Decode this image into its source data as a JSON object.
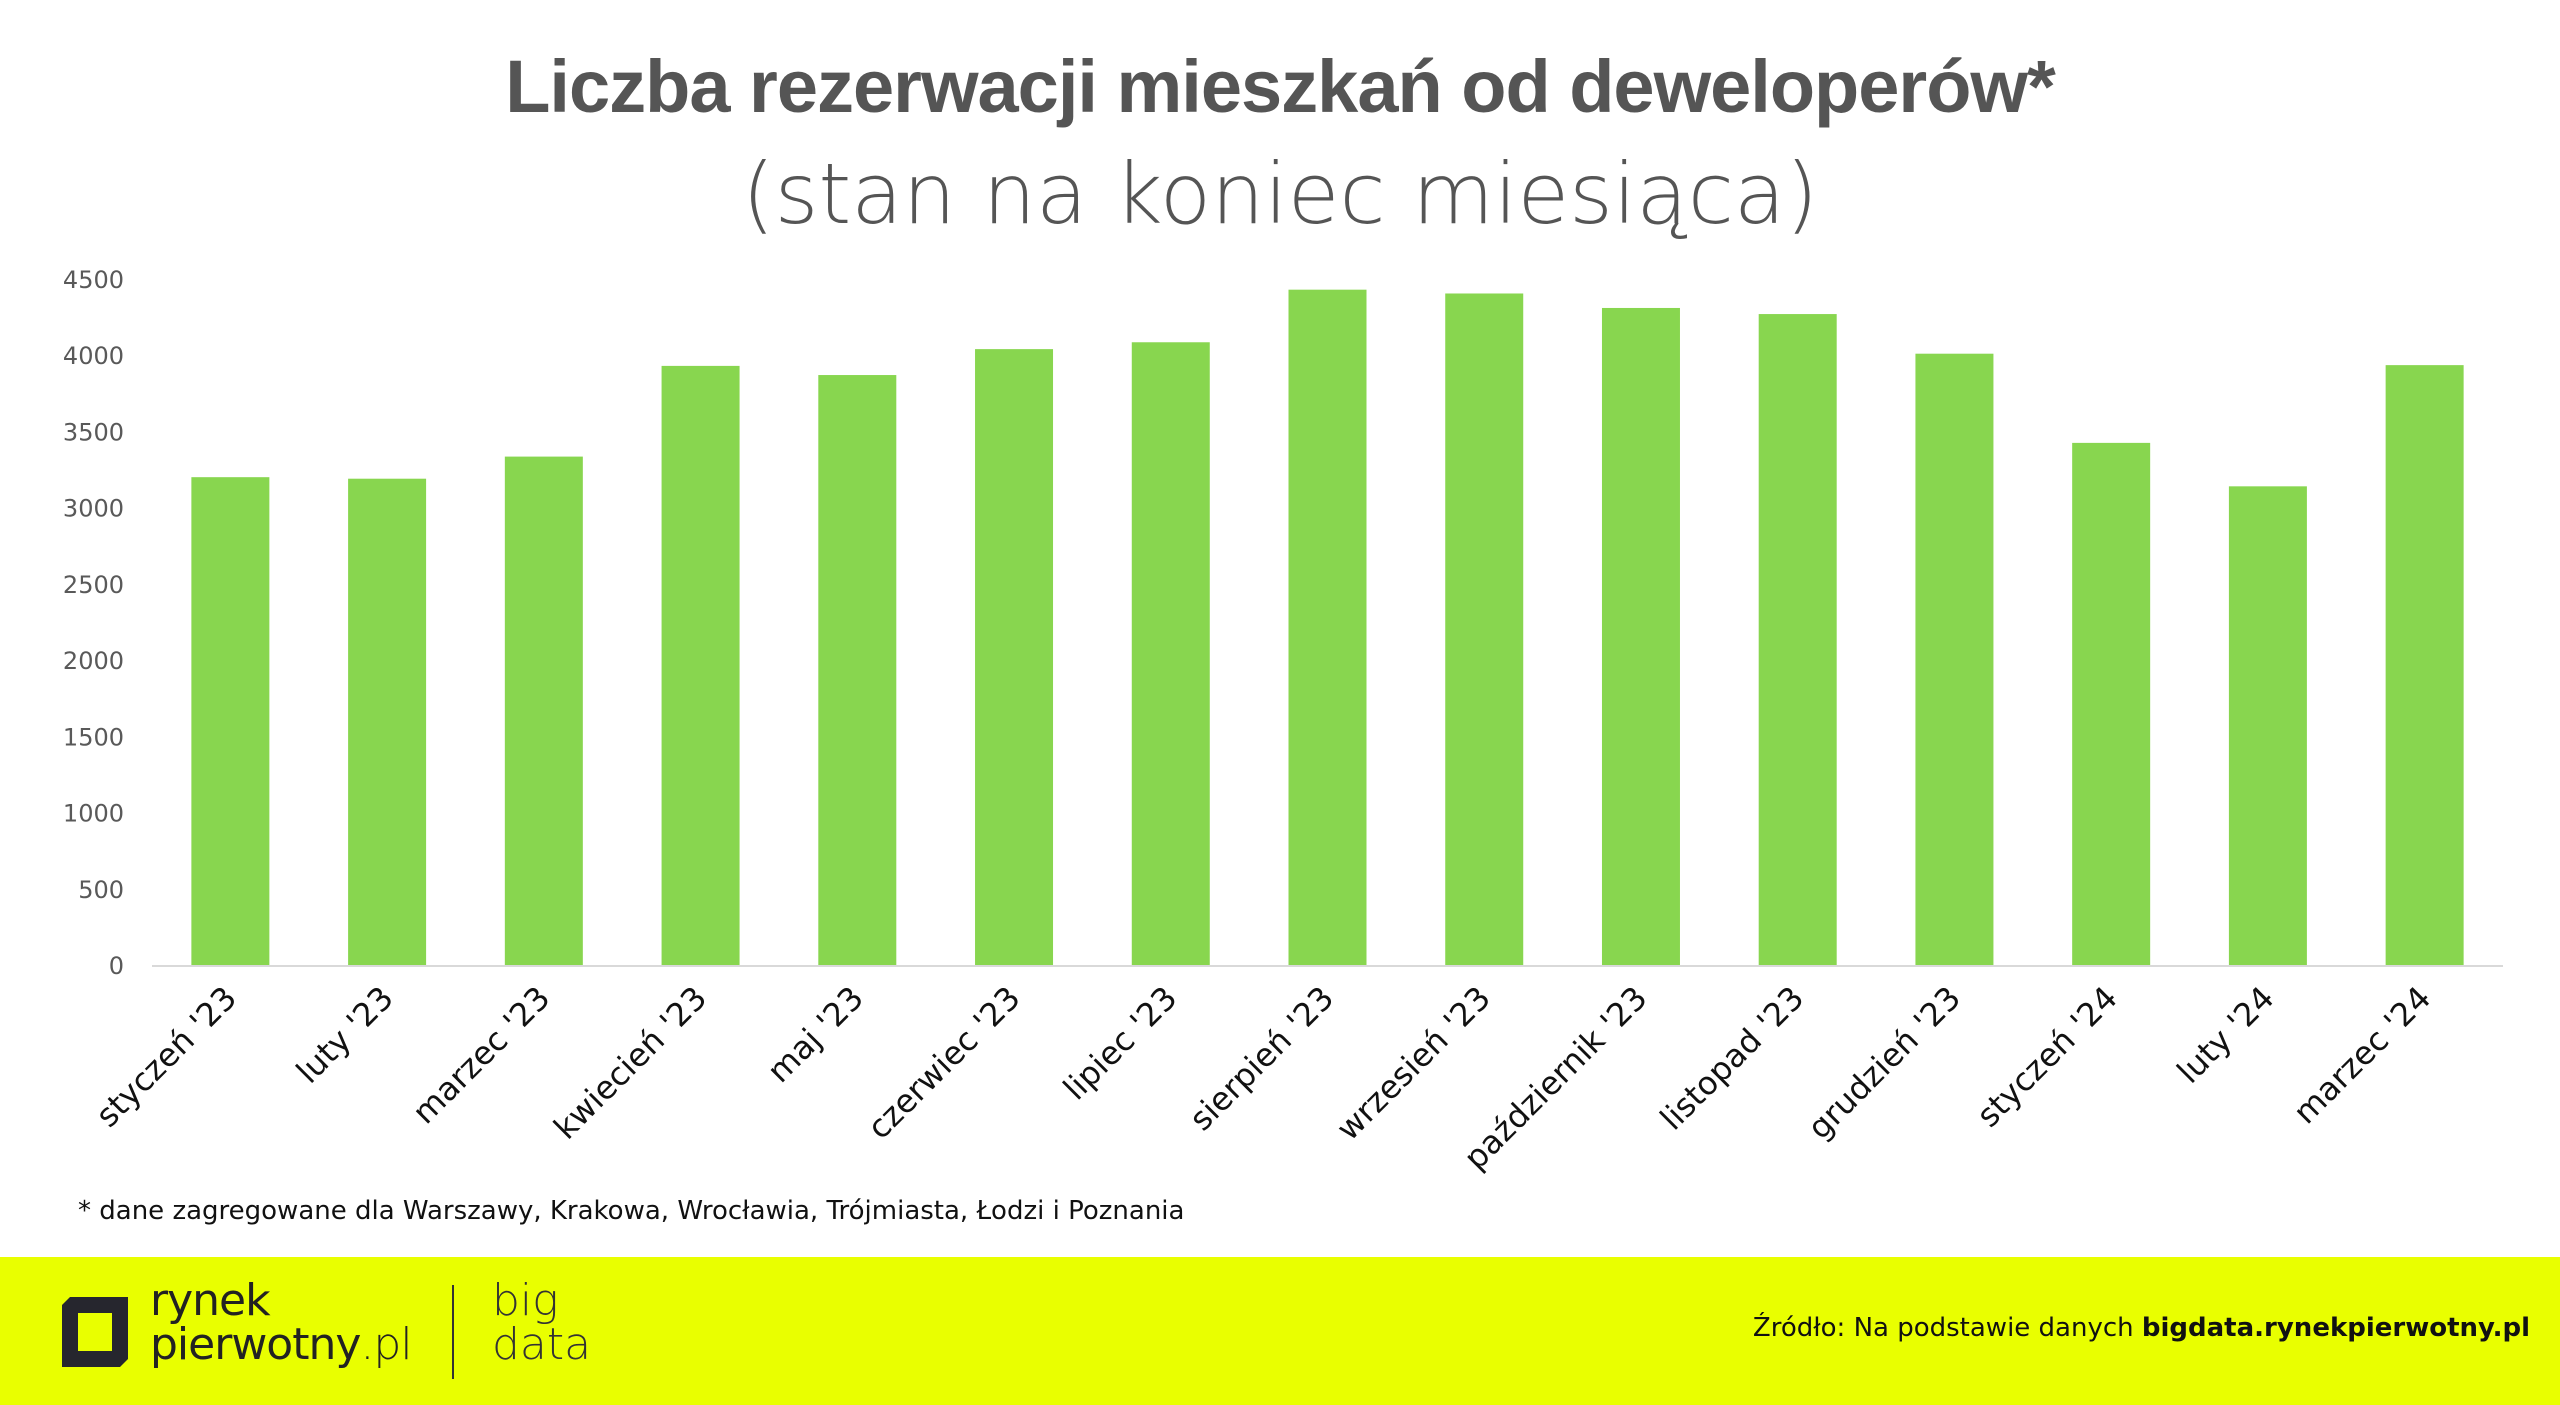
{
  "chart_data": {
    "type": "bar",
    "title": "Liczba rezerwacji mieszkań od deweloperów*",
    "subtitle": "(stan na koniec miesiąca)",
    "xlabel": "",
    "ylabel": "",
    "ylim": [
      0,
      4500
    ],
    "yticks": [
      "0",
      "500",
      "1000",
      "1500",
      "2000",
      "2500",
      "3000",
      "3500",
      "4000",
      "4500"
    ],
    "grid": false,
    "bar_color": "#88d64f",
    "categories": [
      "styczeń '23",
      "luty '23",
      "marzec '23",
      "kwiecień '23",
      "maj '23",
      "czerwiec '23",
      "lipiec '23",
      "sierpień '23",
      "wrzesień '23",
      "październik '23",
      "listopad '23",
      "grudzień '23",
      "styczeń '24",
      "luty '24",
      "marzec '24"
    ],
    "values": [
      3200,
      3190,
      3335,
      3930,
      3870,
      4040,
      4085,
      4430,
      4405,
      4310,
      4270,
      4010,
      3425,
      3140,
      3935
    ]
  },
  "footnote": "* dane zagregowane dla Warszawy, Krakowa, Wrocławia, Trójmiasta, Łodzi i Poznania",
  "footer": {
    "background": "#e9ff00",
    "brand_line1": "rynek",
    "brand_line2": "pierwotny",
    "brand_suffix": ".pl",
    "bigdata_line1": "big",
    "bigdata_line2": "data",
    "source_prefix": "Źródło: Na podstawie danych ",
    "source_link": "bigdata.rynekpierwotny.pl"
  }
}
